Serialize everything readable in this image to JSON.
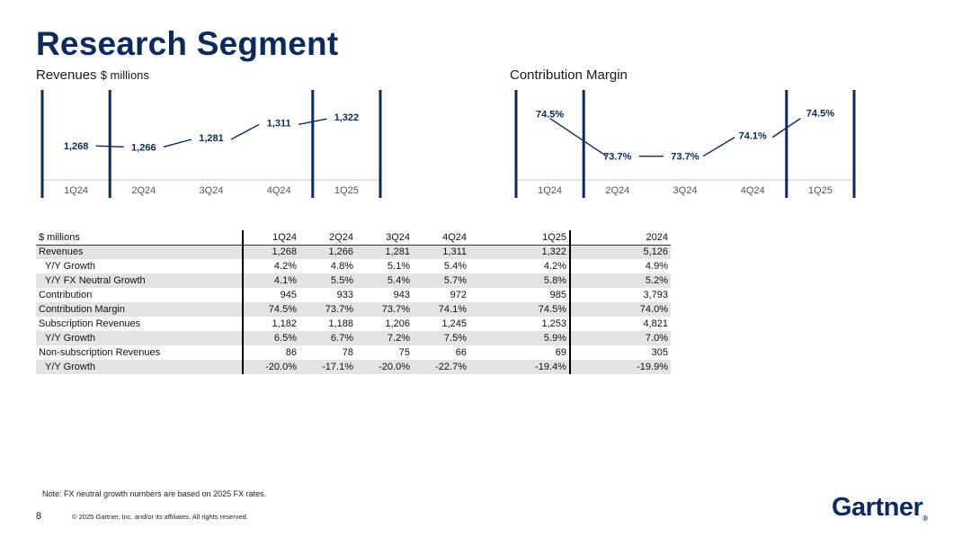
{
  "title": "Research Segment",
  "colors": {
    "brand": "#0e2a5a"
  },
  "chart_data": [
    {
      "type": "line",
      "title": "Revenues",
      "unit": "$ millions",
      "categories": [
        "1Q24",
        "2Q24",
        "3Q24",
        "4Q24",
        "1Q25"
      ],
      "values": [
        1268,
        1266,
        1281,
        1311,
        1322
      ],
      "labels": [
        "1,268",
        "1,266",
        "1,281",
        "1,311",
        "1,322"
      ],
      "ylim": [
        1200,
        1380
      ]
    },
    {
      "type": "line",
      "title": "Contribution Margin",
      "categories": [
        "1Q24",
        "2Q24",
        "3Q24",
        "4Q24",
        "1Q25"
      ],
      "values": [
        74.5,
        73.7,
        73.7,
        74.1,
        74.5
      ],
      "labels": [
        "74.5%",
        "73.7%",
        "73.7%",
        "74.1%",
        "74.5%"
      ],
      "ylim": [
        73.2,
        75.1
      ]
    }
  ],
  "table": {
    "header": [
      "$ millions",
      "1Q24",
      "2Q24",
      "3Q24",
      "4Q24",
      "1Q25",
      "2024"
    ],
    "rows": [
      {
        "label": "Revenues",
        "indent": false,
        "shade": true,
        "values": [
          "1,268",
          "1,266",
          "1,281",
          "1,311",
          "1,322",
          "5,126"
        ]
      },
      {
        "label": "Y/Y Growth",
        "indent": true,
        "shade": false,
        "values": [
          "4.2%",
          "4.8%",
          "5.1%",
          "5.4%",
          "4.2%",
          "4.9%"
        ]
      },
      {
        "label": "Y/Y FX Neutral Growth",
        "indent": true,
        "shade": true,
        "values": [
          "4.1%",
          "5.5%",
          "5.4%",
          "5.7%",
          "5.8%",
          "5.2%"
        ]
      },
      {
        "label": "Contribution",
        "indent": false,
        "shade": false,
        "values": [
          "945",
          "933",
          "943",
          "972",
          "985",
          "3,793"
        ]
      },
      {
        "label": "Contribution Margin",
        "indent": false,
        "shade": true,
        "values": [
          "74.5%",
          "73.7%",
          "73.7%",
          "74.1%",
          "74.5%",
          "74.0%"
        ]
      },
      {
        "label": "Subscription Revenues",
        "indent": false,
        "shade": false,
        "values": [
          "1,182",
          "1,188",
          "1,206",
          "1,245",
          "1,253",
          "4,821"
        ]
      },
      {
        "label": "Y/Y Growth",
        "indent": true,
        "shade": true,
        "values": [
          "6.5%",
          "6.7%",
          "7.2%",
          "7.5%",
          "5.9%",
          "7.0%"
        ]
      },
      {
        "label": "Non-subscription Revenues",
        "indent": false,
        "shade": false,
        "values": [
          "86",
          "78",
          "75",
          "66",
          "69",
          "305"
        ]
      },
      {
        "label": "Y/Y Growth",
        "indent": true,
        "shade": true,
        "values": [
          "-20.0%",
          "-17.1%",
          "-20.0%",
          "-22.7%",
          "-19.4%",
          "-19.9%"
        ]
      }
    ]
  },
  "footer": {
    "note": "Note: FX neutral growth numbers are based on 2025 FX rates.",
    "page_number": "8",
    "copyright": "© 2025 Gartner, Inc. and/or its affiliates. All rights reserved.",
    "logo": "Gartner",
    "logo_mark": "®"
  }
}
